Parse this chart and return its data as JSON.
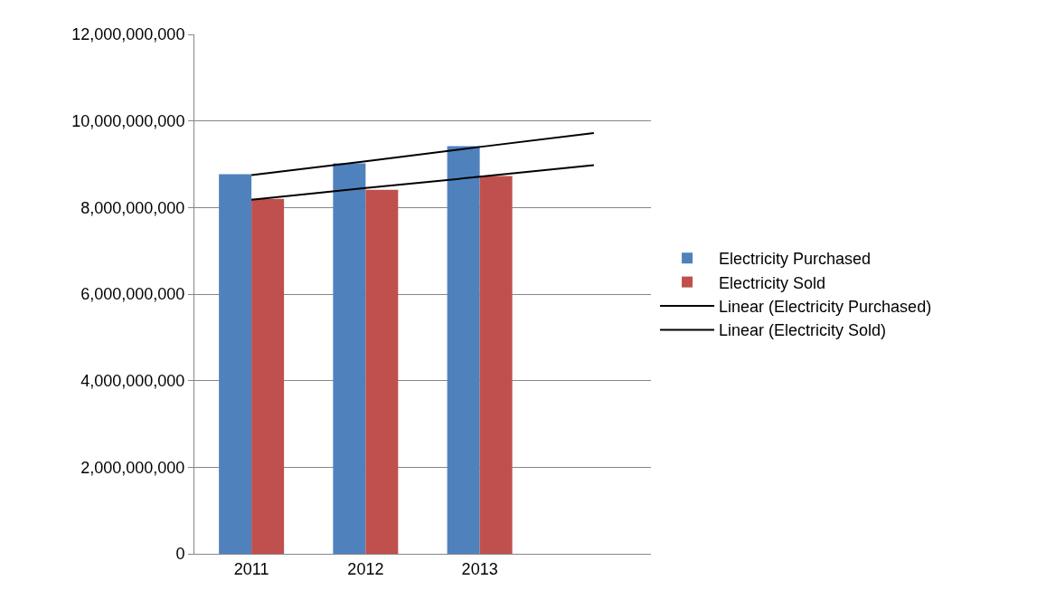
{
  "chart_data": {
    "type": "bar",
    "categories": [
      "2011",
      "2012",
      "2013",
      null
    ],
    "series": [
      {
        "name": "Electricity Purchased",
        "color": "#4f81bd",
        "values": [
          8770000000,
          9020000000,
          9420000000,
          null
        ]
      },
      {
        "name": "Electricity Sold",
        "color": "#c0504d",
        "values": [
          8200000000,
          8410000000,
          8730000000,
          null
        ]
      },
      {
        "name": "Linear (Electricity Purchased)",
        "type": "line",
        "color": "#000000",
        "values": [
          8750000000,
          9070000000,
          9400000000,
          9720000000
        ]
      },
      {
        "name": "Linear (Electricity Sold)",
        "type": "line",
        "color": "#000000",
        "values": [
          8180000000,
          8450000000,
          8710000000,
          8980000000
        ]
      }
    ],
    "ylim": [
      0,
      12000000000
    ],
    "yticks": [
      {
        "value": 0,
        "label": "0"
      },
      {
        "value": 2000000000,
        "label": "2,000,000,000"
      },
      {
        "value": 4000000000,
        "label": "4,000,000,000"
      },
      {
        "value": 6000000000,
        "label": "6,000,000,000"
      },
      {
        "value": 8000000000,
        "label": "8,000,000,000"
      },
      {
        "value": 10000000000,
        "label": "10,000,000,000"
      },
      {
        "value": 12000000000,
        "label": "12,000,000,000"
      }
    ],
    "grid": "y",
    "legend": "right",
    "marker": "none",
    "line_style": "solid"
  }
}
